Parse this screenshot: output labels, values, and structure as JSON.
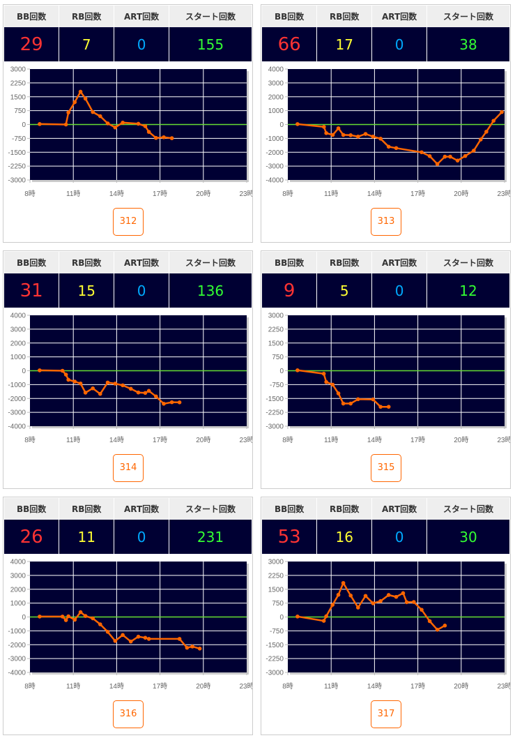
{
  "headers": {
    "bb": "BB回数",
    "rb": "RB回数",
    "art": "ART回数",
    "start": "スタート回数"
  },
  "colors": {
    "bb": "#ff3333",
    "rb": "#ffff33",
    "art": "#00aaff",
    "start": "#33ff33",
    "line": "#ff6600",
    "zero": "#66dd33",
    "plot_bg": "#000033"
  },
  "machines": [
    {
      "bb": "29",
      "rb": "7",
      "art": "0",
      "start": "155",
      "number": "312"
    },
    {
      "bb": "66",
      "rb": "17",
      "art": "0",
      "start": "38",
      "number": "313"
    },
    {
      "bb": "31",
      "rb": "15",
      "art": "0",
      "start": "136",
      "number": "314"
    },
    {
      "bb": "9",
      "rb": "5",
      "art": "0",
      "start": "12",
      "number": "315"
    },
    {
      "bb": "26",
      "rb": "11",
      "art": "0",
      "start": "231",
      "number": "316"
    },
    {
      "bb": "53",
      "rb": "16",
      "art": "0",
      "start": "30",
      "number": "317"
    }
  ],
  "chart_data": [
    {
      "type": "line",
      "title": "312",
      "xlim": [
        8,
        23
      ],
      "ylim": [
        -3000,
        3000
      ],
      "x_ticks": [
        "8時",
        "11時",
        "14時",
        "17時",
        "20時",
        "23時"
      ],
      "y_ticks": [
        "3000",
        "2250",
        "1500",
        "750",
        "0",
        "-750",
        "-1500",
        "-2250",
        "-3000"
      ],
      "x": [
        8.67,
        10.49,
        10.66,
        11.1,
        11.5,
        11.84,
        12.35,
        12.86,
        13.38,
        13.9,
        14.42,
        15.5,
        15.98,
        16.23,
        16.72,
        17.26,
        17.82
      ],
      "y": [
        25,
        0,
        650,
        1210,
        1775,
        1400,
        675,
        450,
        60,
        -160,
        100,
        40,
        -90,
        -400,
        -725,
        -690,
        -740
      ]
    },
    {
      "type": "line",
      "title": "313",
      "xlim": [
        8,
        23
      ],
      "ylim": [
        -4000,
        4000
      ],
      "x_ticks": [
        "8時",
        "11時",
        "14時",
        "17時",
        "20時",
        "23時"
      ],
      "y_ticks": [
        "4000",
        "3000",
        "2000",
        "1000",
        "0",
        "-1000",
        "-2000",
        "-3000",
        "-4000"
      ],
      "x": [
        8.67,
        10.5,
        10.66,
        11.11,
        11.5,
        11.84,
        12.35,
        12.86,
        13.38,
        13.9,
        14.42,
        14.98,
        15.5,
        17.26,
        17.82,
        18.35,
        18.87,
        19.24,
        19.75,
        20.28,
        20.87,
        21.35,
        21.74,
        22.24,
        22.81
      ],
      "y": [
        30,
        -170,
        -620,
        -750,
        -270,
        -750,
        -770,
        -870,
        -680,
        -870,
        -1020,
        -1600,
        -1700,
        -2000,
        -2280,
        -2850,
        -2320,
        -2320,
        -2600,
        -2270,
        -1880,
        -1080,
        -520,
        270,
        900
      ]
    },
    {
      "type": "line",
      "title": "314",
      "xlim": [
        8,
        23
      ],
      "ylim": [
        -4000,
        4000
      ],
      "x_ticks": [
        "8時",
        "11時",
        "14時",
        "17時",
        "20時",
        "23時"
      ],
      "y_ticks": [
        "4000",
        "3000",
        "2000",
        "1000",
        "0",
        "-1000",
        "-2000",
        "-3000",
        "-4000"
      ],
      "x": [
        8.67,
        10.25,
        10.49,
        10.66,
        11.1,
        11.5,
        11.84,
        12.35,
        12.86,
        13.38,
        13.9,
        14.42,
        14.98,
        15.5,
        15.98,
        16.23,
        16.72,
        17.26,
        17.82,
        18.35
      ],
      "y": [
        30,
        0,
        -280,
        -650,
        -780,
        -920,
        -1580,
        -1270,
        -1670,
        -850,
        -930,
        -1050,
        -1300,
        -1570,
        -1600,
        -1450,
        -1850,
        -2380,
        -2270,
        -2280
      ]
    },
    {
      "type": "line",
      "title": "315",
      "xlim": [
        8,
        23
      ],
      "ylim": [
        -3000,
        3000
      ],
      "x_ticks": [
        "8時",
        "11時",
        "14時",
        "17時",
        "20時",
        "23時"
      ],
      "y_ticks": [
        "3000",
        "2250",
        "1500",
        "750",
        "0",
        "-750",
        "-1500",
        "-2250",
        "-3000"
      ],
      "x": [
        8.67,
        10.49,
        10.66,
        11.1,
        11.5,
        11.84,
        12.35,
        12.86,
        13.9,
        14.42,
        14.98
      ],
      "y": [
        25,
        -160,
        -610,
        -750,
        -1225,
        -1775,
        -1775,
        -1540,
        -1550,
        -1950,
        -1950
      ]
    },
    {
      "type": "line",
      "title": "316",
      "xlim": [
        8,
        23
      ],
      "ylim": [
        -4000,
        4000
      ],
      "x_ticks": [
        "8時",
        "11時",
        "14時",
        "17時",
        "20時",
        "23時"
      ],
      "y_ticks": [
        "4000",
        "3000",
        "2000",
        "1000",
        "0",
        "-1000",
        "-2000",
        "-3000",
        "-4000"
      ],
      "x": [
        8.67,
        10.25,
        10.49,
        10.66,
        11.1,
        11.5,
        11.84,
        12.35,
        12.86,
        13.38,
        13.9,
        14.42,
        14.98,
        15.5,
        15.98,
        16.23,
        18.35,
        18.87,
        19.24,
        19.75
      ],
      "y": [
        30,
        30,
        -230,
        50,
        -200,
        350,
        70,
        -100,
        -530,
        -1070,
        -1730,
        -1300,
        -1770,
        -1420,
        -1500,
        -1580,
        -1580,
        -2220,
        -2130,
        -2280
      ]
    },
    {
      "type": "line",
      "title": "317",
      "xlim": [
        8,
        23
      ],
      "ylim": [
        -3000,
        3000
      ],
      "x_ticks": [
        "8時",
        "11時",
        "14時",
        "17時",
        "20時",
        "23時"
      ],
      "y_ticks": [
        "3000",
        "2250",
        "1500",
        "750",
        "0",
        "-750",
        "-1500",
        "-2250",
        "-3000"
      ],
      "x": [
        8.67,
        10.49,
        10.66,
        11.1,
        11.5,
        11.84,
        12.35,
        12.86,
        13.38,
        13.9,
        14.42,
        14.98,
        15.5,
        15.98,
        16.23,
        16.72,
        17.26,
        17.82,
        18.35,
        18.87
      ],
      "y": [
        25,
        -210,
        40,
        660,
        1200,
        1840,
        1160,
        510,
        1140,
        740,
        860,
        1190,
        1090,
        1290,
        800,
        810,
        390,
        -225,
        -690,
        -465
      ]
    }
  ]
}
